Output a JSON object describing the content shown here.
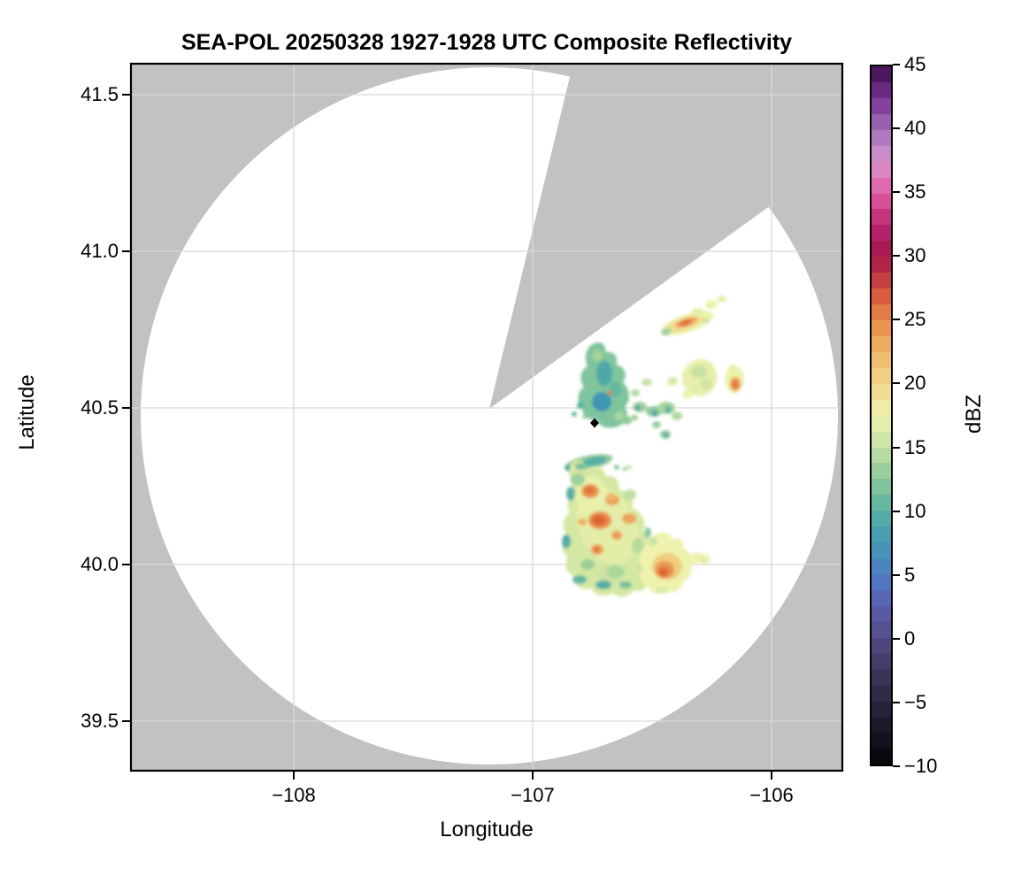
{
  "title": "SEA-POL 20250328 1927-1928 UTC Composite Reflectivity",
  "chart_data": {
    "type": "heatmap",
    "subtype": "radar-composite-reflectivity-ppi",
    "title": "SEA-POL 20250328 1927-1928 UTC Composite Reflectivity",
    "xlabel": "Longitude",
    "ylabel": "Latitude",
    "xlim": [
      -108.68,
      -105.7
    ],
    "ylim": [
      39.34,
      41.6
    ],
    "xticks": [
      "−108",
      "−107",
      "−106"
    ],
    "xtick_values": [
      -108,
      -107,
      -106
    ],
    "yticks": [
      "41.5",
      "41.0",
      "40.5",
      "40.0",
      "39.5"
    ],
    "ytick_values": [
      41.5,
      41.0,
      40.5,
      40.0,
      39.5
    ],
    "grid": true,
    "legend_position": "none",
    "colors": {
      "no_coverage": "#c2c2c2",
      "coverage": "#ffffff",
      "grid": "#d9d9d9",
      "frame": "#000000",
      "marker": "#000000"
    },
    "coverage": {
      "radar_center_lon": -107.18,
      "radar_center_lat": 40.5,
      "range_radius_deg_lat": 1.11,
      "blocked_sector_azimuth_deg": [
        13.5,
        54.0
      ],
      "note": "white circle = radar coverage; gray wedge = blocked/missing sector"
    },
    "marker": {
      "shape": "diamond",
      "color": "#000000",
      "lon": -106.74,
      "lat": 40.45
    },
    "colorbar": {
      "label": "dBZ",
      "min": -10,
      "max": 45,
      "ticks": [
        "45",
        "40",
        "35",
        "30",
        "25",
        "20",
        "15",
        "10",
        "5",
        "0",
        "−5",
        "−10"
      ],
      "tick_values": [
        45,
        40,
        35,
        30,
        25,
        20,
        15,
        10,
        5,
        0,
        -5,
        -10
      ],
      "n_bands": 44,
      "stops": [
        {
          "dbz": -10.0,
          "color": "#060509"
        },
        {
          "dbz": -7.5,
          "color": "#191423"
        },
        {
          "dbz": -5.0,
          "color": "#2c2640"
        },
        {
          "dbz": -2.5,
          "color": "#3f3860"
        },
        {
          "dbz": 0.0,
          "color": "#534b85"
        },
        {
          "dbz": 2.5,
          "color": "#5c5fae"
        },
        {
          "dbz": 5.0,
          "color": "#4d7ec4"
        },
        {
          "dbz": 7.5,
          "color": "#4499b5"
        },
        {
          "dbz": 10.0,
          "color": "#57b2a2"
        },
        {
          "dbz": 12.5,
          "color": "#8cc99b"
        },
        {
          "dbz": 15.0,
          "color": "#c4dfa4"
        },
        {
          "dbz": 17.5,
          "color": "#f0f2ae"
        },
        {
          "dbz": 20.0,
          "color": "#f1d788"
        },
        {
          "dbz": 22.5,
          "color": "#eeb566"
        },
        {
          "dbz": 25.0,
          "color": "#e98c4a"
        },
        {
          "dbz": 27.5,
          "color": "#d24d3d"
        },
        {
          "dbz": 30.0,
          "color": "#a3164b"
        },
        {
          "dbz": 32.5,
          "color": "#bb2670"
        },
        {
          "dbz": 35.0,
          "color": "#e25da5"
        },
        {
          "dbz": 37.5,
          "color": "#d795cc"
        },
        {
          "dbz": 40.0,
          "color": "#a06fba"
        },
        {
          "dbz": 42.5,
          "color": "#7b3394"
        },
        {
          "dbz": 45.0,
          "color": "#3a0f4c"
        }
      ]
    },
    "echoes": [
      {
        "id": "ne-streak",
        "lon": -106.36,
        "lat": 40.78,
        "max_dbz": 26,
        "typical_dbz": 17,
        "shape": "elongated WSW-ENE streak with orange core"
      },
      {
        "id": "teal-cell",
        "lon": -106.7,
        "lat": 40.57,
        "max_dbz": 13,
        "typical_dbz": 9,
        "shape": "vertical teal-green irregular cell"
      },
      {
        "id": "scattered-bits",
        "lon": -106.49,
        "lat": 40.49,
        "max_dbz": 12,
        "typical_dbz": 9,
        "shape": "chain of small green patches"
      },
      {
        "id": "mid-yellow-cell",
        "lon": -106.3,
        "lat": 40.6,
        "max_dbz": 17,
        "typical_dbz": 15,
        "shape": "round pale yellow-green cell"
      },
      {
        "id": "right-yellow-cell",
        "lon": -106.16,
        "lat": 40.59,
        "max_dbz": 25,
        "typical_dbz": 16,
        "shape": "small cell with orange core"
      },
      {
        "id": "thin-streak",
        "lon": -106.71,
        "lat": 40.33,
        "max_dbz": 13,
        "typical_dbz": 10,
        "shape": "thin tilted green streak"
      },
      {
        "id": "main-storm",
        "lon": -106.69,
        "lat": 40.13,
        "max_dbz": 28,
        "typical_dbz": 16,
        "shape": "large multicore storm, orange cores, teal fringe"
      },
      {
        "id": "se-cell",
        "lon": -106.44,
        "lat": 39.99,
        "max_dbz": 28,
        "typical_dbz": 17,
        "shape": "round cell with strong orange core and pale east arm"
      }
    ]
  }
}
